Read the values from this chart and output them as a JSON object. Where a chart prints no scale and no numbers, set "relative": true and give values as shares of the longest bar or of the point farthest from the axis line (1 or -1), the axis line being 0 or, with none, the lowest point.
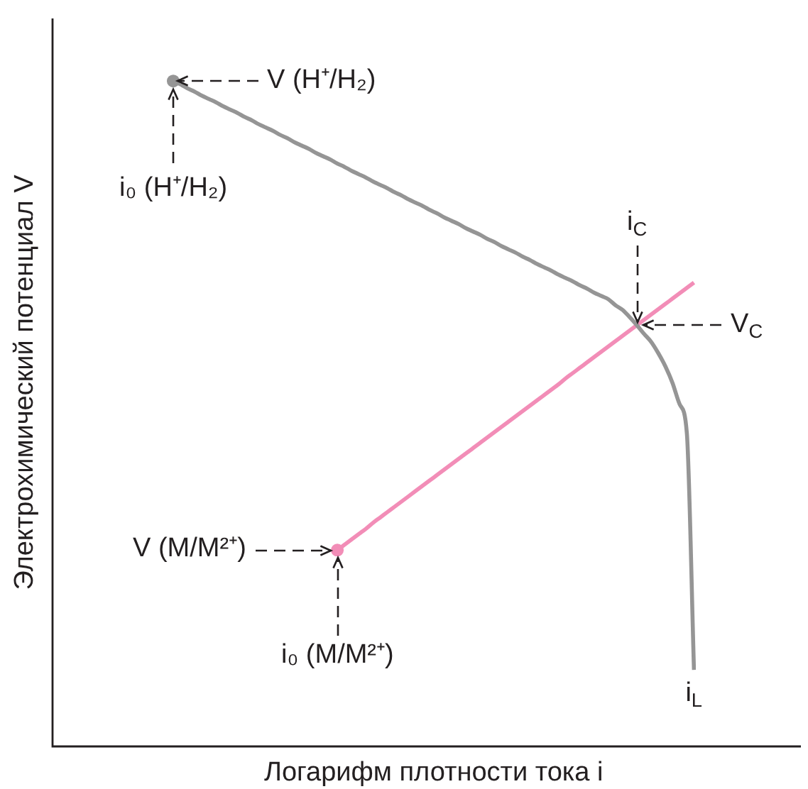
{
  "chart_data": {
    "type": "line",
    "relative": true,
    "xlabel": "Логарифм плотности тока i",
    "ylabel": "Электрохимический потенциал V",
    "categories": [
      null,
      null,
      null,
      null,
      null,
      null,
      null,
      null,
      null,
      null,
      null,
      null,
      null,
      null,
      null,
      null,
      null,
      null,
      null,
      null,
      null,
      null,
      null,
      null,
      null,
      null,
      null,
      null,
      null,
      null,
      null,
      null,
      null,
      null,
      null,
      null,
      null,
      null,
      null,
      null,
      null,
      null,
      null,
      null,
      null,
      null,
      null,
      null,
      null,
      null,
      null,
      null,
      null,
      null,
      null,
      null,
      null,
      null,
      null,
      null,
      null,
      null,
      null,
      null,
      null,
      null,
      null,
      null,
      null,
      null,
      null,
      null,
      null,
      null
    ],
    "series": [
      {
        "color": "#959595",
        "values": [
          1,
          0.995,
          0.989,
          0.984,
          0.978,
          0.973,
          0.968,
          0.962,
          0.957,
          0.952,
          0.946,
          0.941,
          0.935,
          0.93,
          0.925,
          0.919,
          0.914,
          0.908,
          0.903,
          0.898,
          0.892,
          0.887,
          0.882,
          0.876,
          0.871,
          0.865,
          0.86,
          0.855,
          0.849,
          0.844,
          0.839,
          0.833,
          0.828,
          0.822,
          0.817,
          0.812,
          0.806,
          0.801,
          0.795,
          0.79,
          0.785,
          0.779,
          0.774,
          0.769,
          0.763,
          0.758,
          0.752,
          0.747,
          0.742,
          0.736,
          0.731,
          0.725,
          0.72,
          0.715,
          0.709,
          0.704,
          0.699,
          0.693,
          0.688,
          0.682,
          0.677,
          0.672,
          0.663,
          0.656,
          0.645,
          0.633,
          0.62,
          0.608,
          0.591,
          0.571,
          0.546,
          0.514,
          0.471,
          0.115
        ]
      },
      {
        "color": "#f28db7",
        "values": [
          null,
          null,
          null,
          null,
          null,
          null,
          null,
          null,
          null,
          null,
          null,
          null,
          null,
          null,
          null,
          null,
          null,
          null,
          null,
          null,
          null,
          null,
          null,
          0.295,
          0.303,
          0.311,
          0.319,
          0.327,
          0.336,
          0.344,
          0.352,
          0.36,
          0.368,
          0.376,
          0.384,
          0.392,
          0.4,
          0.408,
          0.416,
          0.424,
          0.432,
          0.44,
          0.448,
          0.456,
          0.464,
          0.472,
          0.48,
          0.488,
          0.496,
          0.504,
          0.512,
          0.52,
          0.528,
          0.536,
          0.544,
          0.553,
          0.561,
          0.569,
          0.577,
          0.585,
          0.593,
          0.601,
          0.609,
          0.617,
          0.625,
          0.633,
          0.641,
          0.649,
          0.657,
          0.665,
          0.673,
          0.681,
          0.689,
          0.697
        ]
      },
      {
        "marker": "circle",
        "color": "#959595",
        "values": [
          1,
          null,
          null,
          null,
          null,
          null,
          null,
          null,
          null,
          null,
          null,
          null,
          null,
          null,
          null,
          null,
          null,
          null,
          null,
          null,
          null,
          null,
          null,
          null,
          null,
          null,
          null,
          null,
          null,
          null,
          null,
          null,
          null,
          null,
          null,
          null,
          null,
          null,
          null,
          null,
          null,
          null,
          null,
          null,
          null,
          null,
          null,
          null,
          null,
          null,
          null,
          null,
          null,
          null,
          null,
          null,
          null,
          null,
          null,
          null,
          null,
          null,
          null,
          null,
          null,
          null,
          null,
          null,
          null,
          null,
          null,
          null,
          null,
          null
        ]
      },
      {
        "marker": "circle",
        "color": "#f28db7",
        "values": [
          null,
          null,
          null,
          null,
          null,
          null,
          null,
          null,
          null,
          null,
          null,
          null,
          null,
          null,
          null,
          null,
          null,
          null,
          null,
          null,
          null,
          null,
          null,
          0.295,
          null,
          null,
          null,
          null,
          null,
          null,
          null,
          null,
          null,
          null,
          null,
          null,
          null,
          null,
          null,
          null,
          null,
          null,
          null,
          null,
          null,
          null,
          null,
          null,
          null,
          null,
          null,
          null,
          null,
          null,
          null,
          null,
          null,
          null,
          null,
          null,
          null,
          null,
          null,
          null,
          null,
          null,
          null,
          null,
          null,
          null,
          null,
          null,
          null,
          null
        ]
      }
    ],
    "annotations": [
      "V (H⁺/H₂)",
      "i₀ (H⁺/H₂)",
      "i$_{C}$",
      "V$_{C}$",
      "V (M/M²⁺)",
      "i₀ (M/M²⁺)",
      "i$_{L}$"
    ]
  }
}
